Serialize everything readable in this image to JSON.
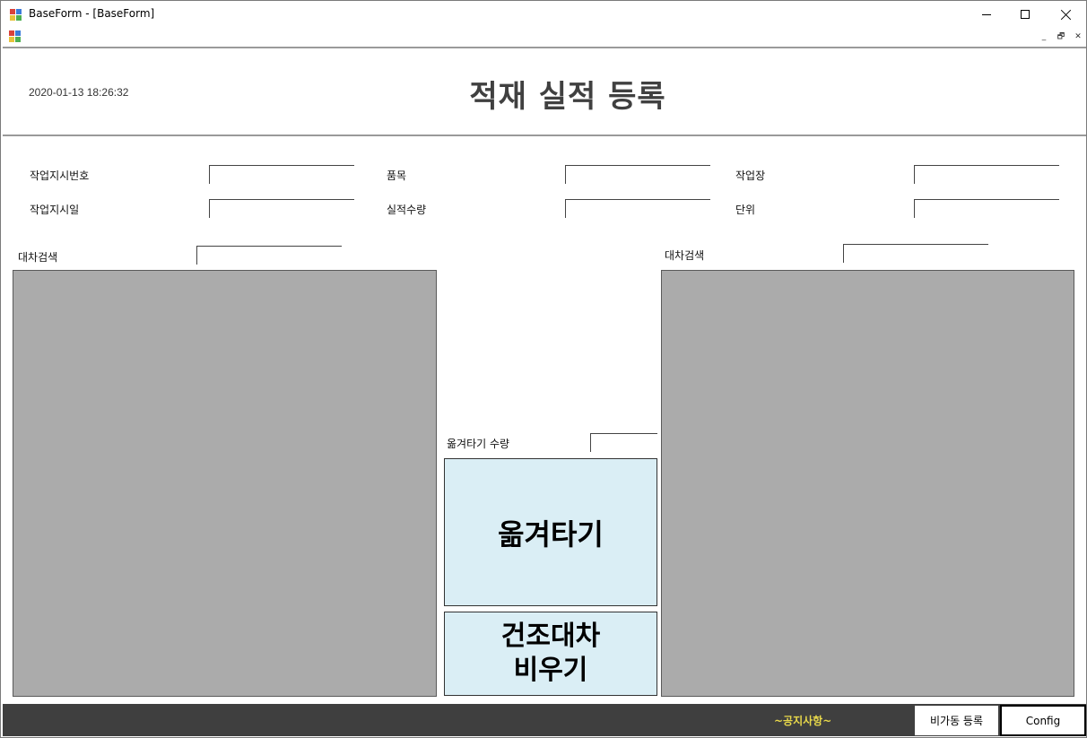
{
  "window": {
    "title": "BaseForm - [BaseForm]"
  },
  "mdi": {
    "minimize_glyph": "_",
    "restore_glyph": "🗗",
    "close_glyph": "✕"
  },
  "header": {
    "datetime": "2020-01-13 18:26:32",
    "title": "적재 실적 등록"
  },
  "form": {
    "work_order_no_label": "작업지시번호",
    "work_order_no_value": "",
    "item_label": "품목",
    "item_value": "",
    "workplace_label": "작업장",
    "workplace_value": "",
    "work_order_date_label": "작업지시일",
    "work_order_date_value": "",
    "actual_qty_label": "실적수량",
    "actual_qty_value": "",
    "unit_label": "단위",
    "unit_value": ""
  },
  "left_panel": {
    "search_label": "대차검색",
    "search_value": ""
  },
  "right_panel": {
    "search_label": "대차검색",
    "search_value": ""
  },
  "transfer": {
    "qty_label": "옮겨타기 수량",
    "qty_value": "",
    "move_button": "옮겨타기",
    "empty_button_line1": "건조대차",
    "empty_button_line2": "비우기"
  },
  "footer": {
    "notice": "~공지사항~",
    "downtime_button": "비가동 등록",
    "config_button": "Config"
  },
  "colors": {
    "panel_gray": "#ababab",
    "button_light_blue": "#daeef5",
    "footer_dark": "#3f3f3f",
    "notice_yellow": "#e8d84a",
    "title_gray": "#404040"
  }
}
